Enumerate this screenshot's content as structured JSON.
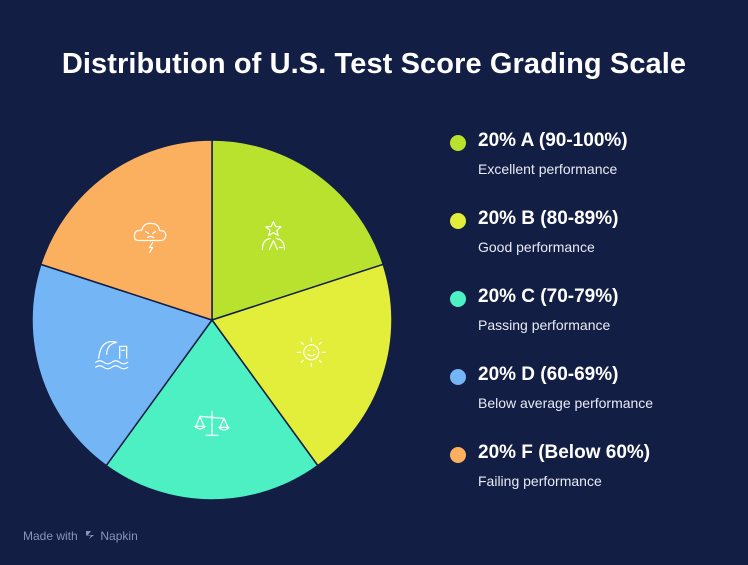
{
  "title": "Distribution of U.S. Test Score Grading Scale",
  "chart_data": {
    "type": "pie",
    "title": "Distribution of U.S. Test Score Grading Scale",
    "slices": [
      {
        "grade": "A",
        "label": "20% A (90-100%)",
        "value": 20,
        "description": "Excellent performance",
        "color": "#b9e22f",
        "icon": "star-person-icon"
      },
      {
        "grade": "B",
        "label": "20% B (80-89%)",
        "value": 20,
        "description": "Good performance",
        "color": "#e2ee3a",
        "icon": "smiling-sun-icon"
      },
      {
        "grade": "C",
        "label": "20% C (70-79%)",
        "value": 20,
        "description": "Passing performance",
        "color": "#4df0c3",
        "icon": "balance-scale-icon"
      },
      {
        "grade": "D",
        "label": "20% D (60-69%)",
        "value": 20,
        "description": "Below average performance",
        "color": "#74b5f6",
        "icon": "wave-flag-icon"
      },
      {
        "grade": "F",
        "label": "20% F (Below 60%)",
        "value": 20,
        "description": "Failing performance",
        "color": "#fbb05f",
        "icon": "storm-cloud-icon"
      }
    ],
    "legend_position": "right"
  },
  "footer": {
    "made_with": "Made with",
    "brand": "Napkin"
  }
}
